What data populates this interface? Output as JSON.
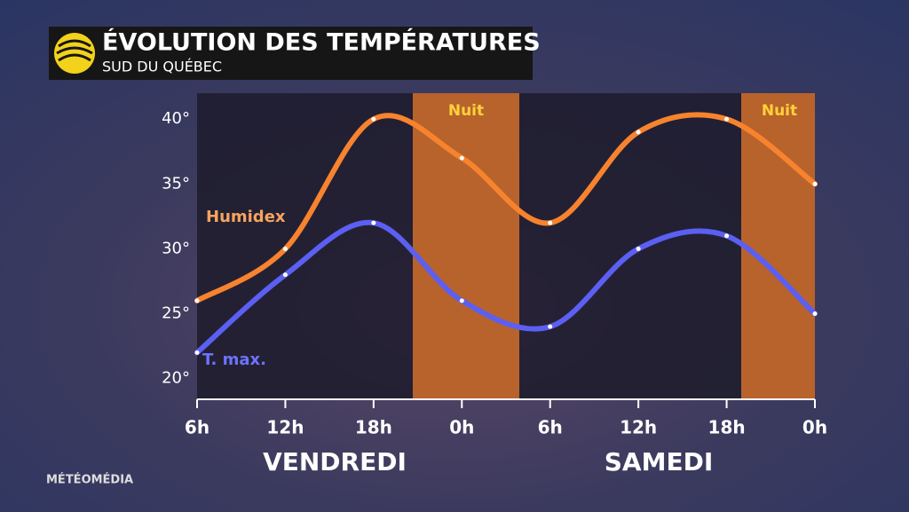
{
  "chart_data": {
    "type": "line",
    "title": "ÉVOLUTION DES TEMPÉRATURES",
    "subtitle": "SUD DU QUÉBEC",
    "brand": "MÉTÉOMÉDIA",
    "categories": [
      "6h",
      "12h",
      "18h",
      "0h",
      "6h",
      "12h",
      "18h",
      "0h"
    ],
    "days": [
      "VENDREDI",
      "SAMEDI"
    ],
    "night_labels": [
      "Nuit",
      "Nuit"
    ],
    "series": [
      {
        "name": "Humidex",
        "color": "#f7832e",
        "values": [
          26,
          30,
          40,
          37,
          32,
          39,
          40,
          35
        ]
      },
      {
        "name": "T. max.",
        "color": "#5b5ff2",
        "values": [
          22,
          28,
          32,
          26,
          24,
          30,
          31,
          25
        ]
      }
    ],
    "ylim": [
      18.4,
      42
    ],
    "yticks": [
      {
        "value": 20,
        "label": "20°"
      },
      {
        "value": 25,
        "label": "25°"
      },
      {
        "value": 30,
        "label": "30°"
      },
      {
        "value": 35,
        "label": "35°"
      },
      {
        "value": 40,
        "label": "40°"
      }
    ]
  }
}
